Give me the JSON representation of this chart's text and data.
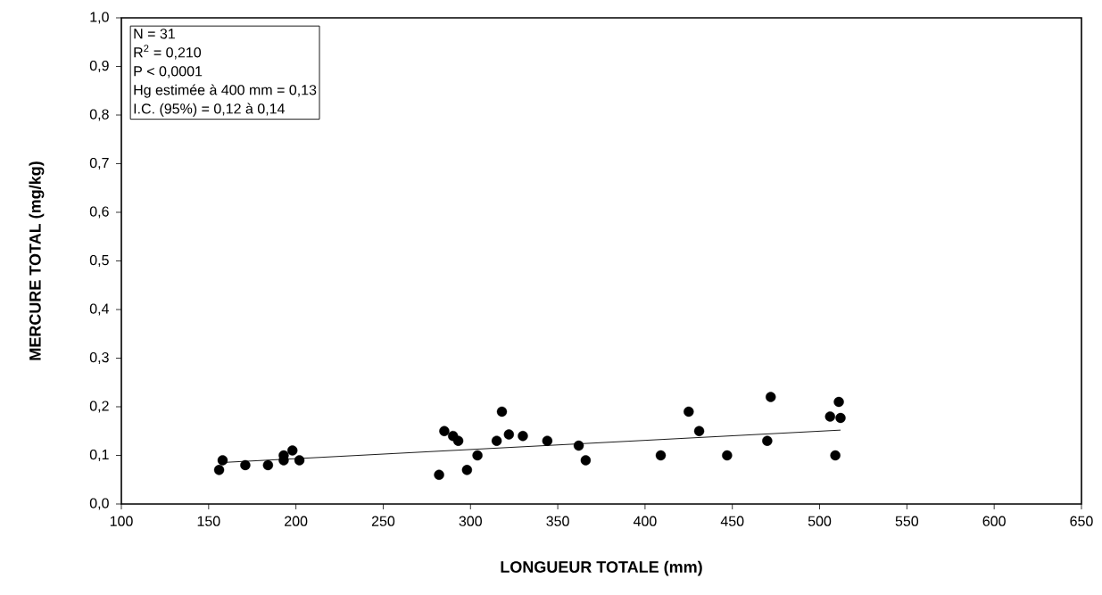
{
  "chart_data": {
    "type": "scatter",
    "xlabel": "LONGUEUR TOTALE (mm)",
    "ylabel": "MERCURE TOTAL (mg/kg)",
    "annotations": [
      "N = 31",
      "R$^{2}$ = 0,210",
      "P < 0,0001",
      "Hg estimée à 400 mm = 0,13",
      "I.C. (95%) = 0,12 à 0,14"
    ],
    "xlim": [
      100,
      650
    ],
    "xticks": [
      100,
      150,
      200,
      250,
      300,
      350,
      400,
      450,
      500,
      550,
      600,
      650
    ],
    "ylim": [
      0,
      1
    ],
    "yticks": [
      {
        "value": 0,
        "label": "0,0"
      },
      {
        "value": 0.1,
        "label": "0,1"
      },
      {
        "value": 0.2,
        "label": "0,2"
      },
      {
        "value": 0.3,
        "label": "0,3"
      },
      {
        "value": 0.4,
        "label": "0,4"
      },
      {
        "value": 0.5,
        "label": "0,5"
      },
      {
        "value": 0.6,
        "label": "0,6"
      },
      {
        "value": 0.7,
        "label": "0,7"
      },
      {
        "value": 0.8,
        "label": "0,8"
      },
      {
        "value": 0.9,
        "label": "0,9"
      },
      {
        "value": 1,
        "label": "1,0"
      }
    ],
    "grid": false,
    "marker": "circle",
    "series": [
      {
        "color": "#000000",
        "x": [
          156,
          158,
          171,
          184,
          193,
          193,
          198,
          202,
          282,
          285,
          290,
          293,
          298,
          304,
          315,
          318,
          322,
          330,
          344,
          362,
          366,
          409,
          425,
          431,
          447,
          470,
          472,
          506,
          509,
          511,
          512
        ],
        "values": [
          0.07,
          0.09,
          0.08,
          0.08,
          0.1,
          0.09,
          0.11,
          0.09,
          0.06,
          0.15,
          0.14,
          0.13,
          0.07,
          0.1,
          0.13,
          0.19,
          0.143,
          0.14,
          0.13,
          0.12,
          0.09,
          0.1,
          0.19,
          0.15,
          0.1,
          0.13,
          0.22,
          0.18,
          0.1,
          0.21,
          0.177
        ]
      },
      {
        "type": "line",
        "color": "#000000",
        "marker": "none",
        "x": [
          156,
          512
        ],
        "values": [
          0.085,
          0.152
        ]
      }
    ]
  }
}
